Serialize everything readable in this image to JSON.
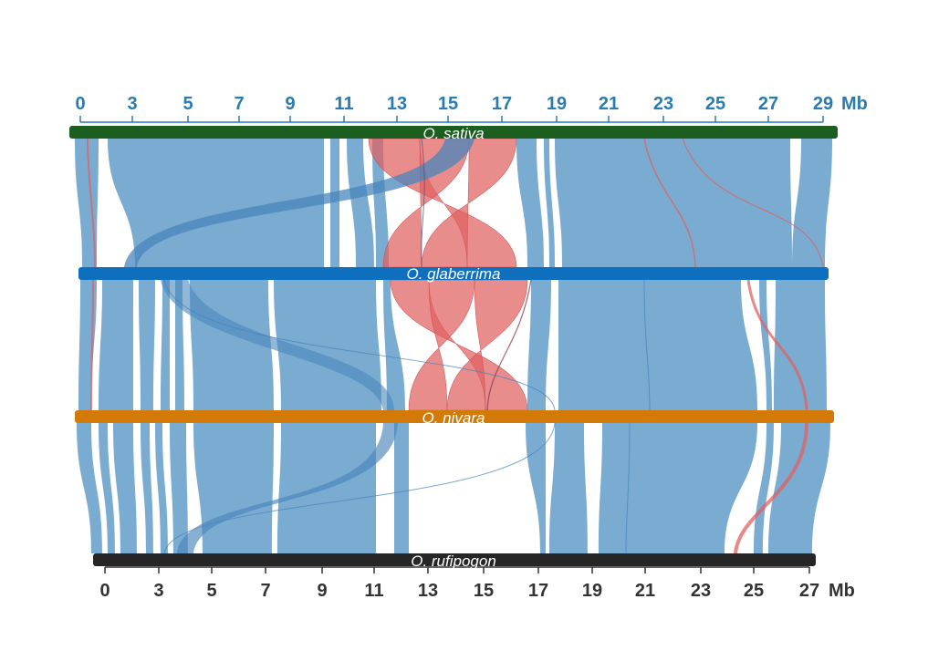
{
  "colors": {
    "collinear": "#77aad1",
    "collinear_edge": "#4a86bb",
    "inverted": "#e06060",
    "top_axis": "#2a7bb0",
    "bottom_axis": "#333333"
  },
  "top_axis": {
    "ticks": [
      "0",
      "3",
      "5",
      "7",
      "9",
      "11",
      "13",
      "15",
      "17",
      "19",
      "21",
      "23",
      "25",
      "27",
      "29"
    ],
    "unit": "Mb"
  },
  "bottom_axis": {
    "ticks": [
      "0",
      "3",
      "5",
      "7",
      "9",
      "11",
      "13",
      "15",
      "17",
      "19",
      "21",
      "23",
      "25",
      "27"
    ],
    "unit": "Mb"
  },
  "genomes": [
    {
      "label": "O. sativa",
      "color": "#1b5e20"
    },
    {
      "label": "O. glaberrima",
      "color": "#0e6fbf"
    },
    {
      "label": "O. nivara",
      "color": "#d27a05"
    },
    {
      "label": "O. rufipogon",
      "color": "#262626"
    }
  ]
}
